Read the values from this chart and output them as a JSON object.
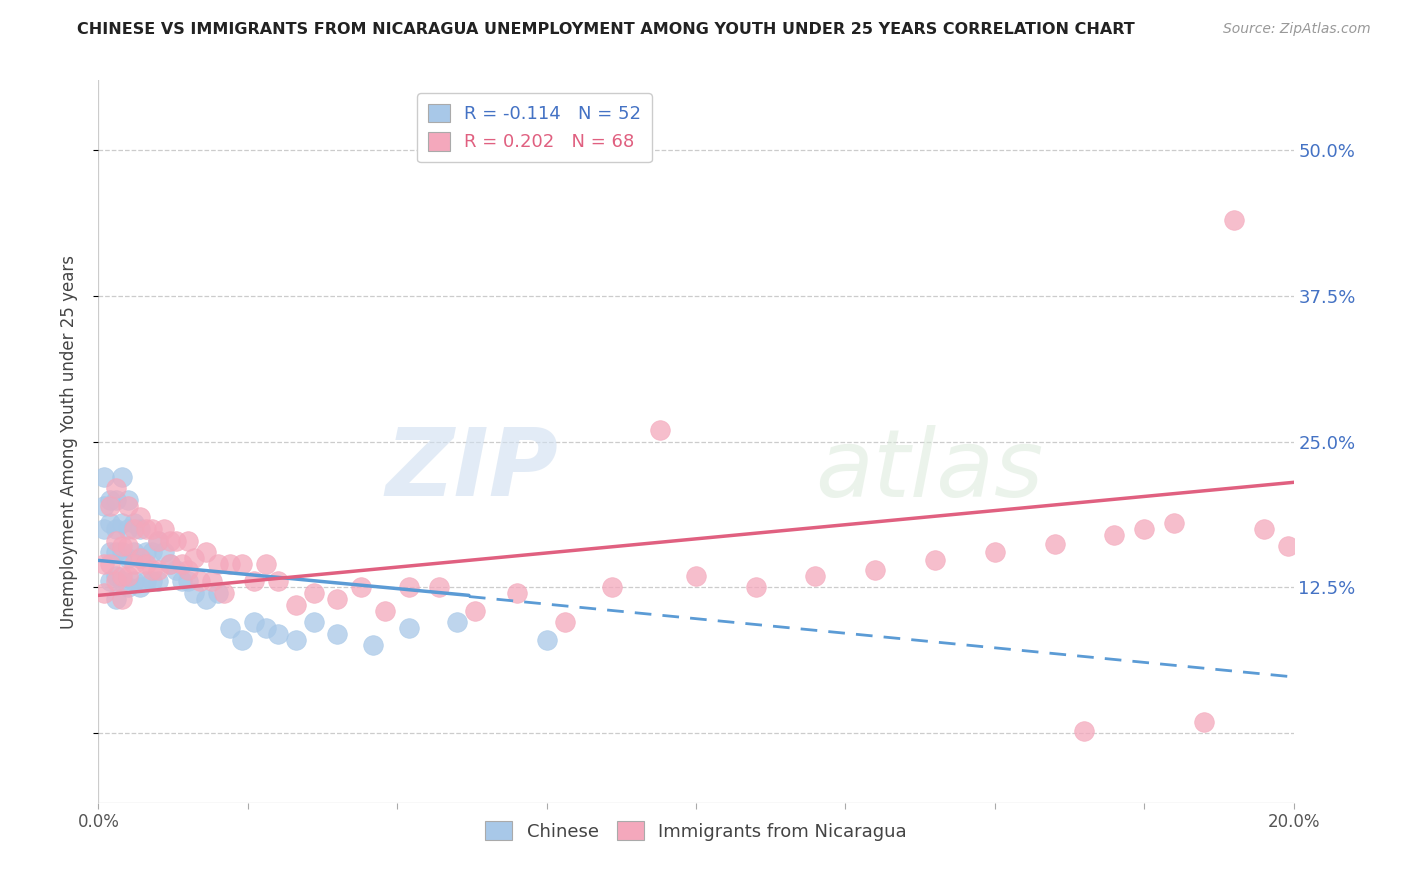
{
  "title": "CHINESE VS IMMIGRANTS FROM NICARAGUA UNEMPLOYMENT AMONG YOUTH UNDER 25 YEARS CORRELATION CHART",
  "source": "Source: ZipAtlas.com",
  "ylabel": "Unemployment Among Youth under 25 years",
  "xlim": [
    0.0,
    0.2
  ],
  "ylim": [
    -0.06,
    0.56
  ],
  "yticks": [
    0.0,
    0.125,
    0.25,
    0.375,
    0.5
  ],
  "ytick_labels": [
    "",
    "12.5%",
    "25.0%",
    "37.5%",
    "50.0%"
  ],
  "xticks": [
    0.0,
    0.025,
    0.05,
    0.075,
    0.1,
    0.125,
    0.15,
    0.175,
    0.2
  ],
  "xtick_labels": [
    "0.0%",
    "",
    "",
    "",
    "",
    "",
    "",
    "",
    "20.0%"
  ],
  "legend_r1": "R = -0.114   N = 52",
  "legend_r2": "R = 0.202   N = 68",
  "color_chinese": "#a8c8e8",
  "color_nicaragua": "#f4a8bc",
  "color_trend_chinese": "#5b9bd5",
  "color_trend_nicaragua": "#e06080",
  "watermark_zip": "ZIP",
  "watermark_atlas": "atlas",
  "chinese_x": [
    0.001,
    0.001,
    0.001,
    0.002,
    0.002,
    0.002,
    0.002,
    0.003,
    0.003,
    0.003,
    0.003,
    0.003,
    0.004,
    0.004,
    0.004,
    0.004,
    0.005,
    0.005,
    0.005,
    0.005,
    0.006,
    0.006,
    0.006,
    0.007,
    0.007,
    0.007,
    0.008,
    0.008,
    0.009,
    0.009,
    0.01,
    0.01,
    0.011,
    0.012,
    0.013,
    0.014,
    0.015,
    0.016,
    0.018,
    0.02,
    0.022,
    0.024,
    0.026,
    0.028,
    0.03,
    0.033,
    0.036,
    0.04,
    0.046,
    0.052,
    0.06,
    0.075
  ],
  "chinese_y": [
    0.22,
    0.195,
    0.175,
    0.2,
    0.18,
    0.155,
    0.13,
    0.2,
    0.175,
    0.155,
    0.135,
    0.115,
    0.22,
    0.18,
    0.155,
    0.13,
    0.2,
    0.175,
    0.15,
    0.125,
    0.18,
    0.155,
    0.13,
    0.175,
    0.15,
    0.125,
    0.155,
    0.13,
    0.155,
    0.13,
    0.165,
    0.13,
    0.155,
    0.145,
    0.14,
    0.13,
    0.13,
    0.12,
    0.115,
    0.12,
    0.09,
    0.08,
    0.095,
    0.09,
    0.085,
    0.08,
    0.095,
    0.085,
    0.075,
    0.09,
    0.095,
    0.08
  ],
  "nicaragua_x": [
    0.001,
    0.001,
    0.002,
    0.002,
    0.003,
    0.003,
    0.003,
    0.004,
    0.004,
    0.004,
    0.005,
    0.005,
    0.005,
    0.006,
    0.006,
    0.007,
    0.007,
    0.008,
    0.008,
    0.009,
    0.009,
    0.01,
    0.01,
    0.011,
    0.012,
    0.012,
    0.013,
    0.014,
    0.015,
    0.015,
    0.016,
    0.017,
    0.018,
    0.019,
    0.02,
    0.021,
    0.022,
    0.024,
    0.026,
    0.028,
    0.03,
    0.033,
    0.036,
    0.04,
    0.044,
    0.048,
    0.052,
    0.057,
    0.063,
    0.07,
    0.078,
    0.086,
    0.094,
    0.1,
    0.11,
    0.12,
    0.13,
    0.14,
    0.15,
    0.16,
    0.165,
    0.17,
    0.175,
    0.18,
    0.185,
    0.19,
    0.195,
    0.199
  ],
  "nicaragua_y": [
    0.145,
    0.12,
    0.195,
    0.145,
    0.21,
    0.165,
    0.13,
    0.16,
    0.135,
    0.115,
    0.195,
    0.16,
    0.135,
    0.175,
    0.145,
    0.185,
    0.15,
    0.175,
    0.145,
    0.175,
    0.14,
    0.165,
    0.14,
    0.175,
    0.165,
    0.145,
    0.165,
    0.145,
    0.165,
    0.14,
    0.15,
    0.13,
    0.155,
    0.13,
    0.145,
    0.12,
    0.145,
    0.145,
    0.13,
    0.145,
    0.13,
    0.11,
    0.12,
    0.115,
    0.125,
    0.105,
    0.125,
    0.125,
    0.105,
    0.12,
    0.095,
    0.125,
    0.26,
    0.135,
    0.125,
    0.135,
    0.14,
    0.148,
    0.155,
    0.162,
    0.002,
    0.17,
    0.175,
    0.18,
    0.009,
    0.44,
    0.175,
    0.16
  ],
  "trend_cn_x0": 0.0,
  "trend_cn_y0": 0.148,
  "trend_cn_x1": 0.062,
  "trend_cn_y1": 0.118,
  "trend_cn_xdash_end": 0.2,
  "trend_cn_ydash_end": 0.048,
  "trend_ni_x0": 0.0,
  "trend_ni_y0": 0.118,
  "trend_ni_x1": 0.2,
  "trend_ni_y1": 0.215
}
